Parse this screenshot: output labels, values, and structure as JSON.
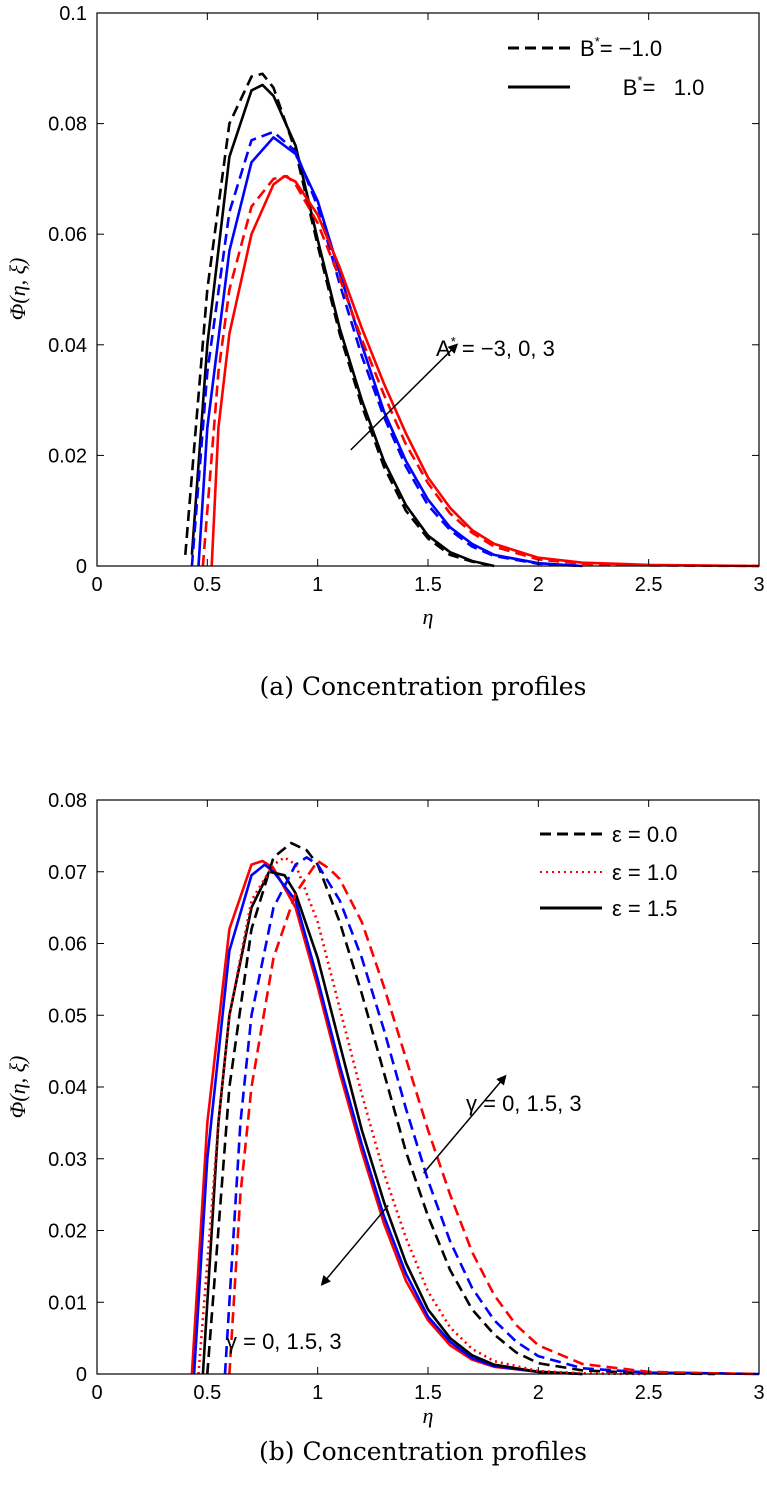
{
  "chart_data": [
    {
      "type": "line",
      "caption": "(a)  Concentration profiles",
      "xlabel": "η",
      "ylabel": "Φ(η, ξ)",
      "xlim": [
        0,
        3
      ],
      "ylim": [
        0,
        0.1
      ],
      "xticks": [
        0,
        0.5,
        1,
        1.5,
        2,
        2.5,
        3
      ],
      "xtick_labels": [
        "0",
        "0.5",
        "1",
        "1.5",
        "2",
        "2.5",
        "3"
      ],
      "yticks": [
        0,
        0.02,
        0.04,
        0.06,
        0.08,
        0.1
      ],
      "ytick_labels": [
        "0",
        "0.02",
        "0.04",
        "0.06",
        "0.08",
        "0.1"
      ],
      "legend": [
        {
          "label": "B* = −1.0",
          "name_text": "B",
          "sup": "*",
          "value_text": "= −1.0",
          "style": "dashed"
        },
        {
          "label": "B* = 1.0",
          "name_text": "B",
          "sup": "*",
          "value_text": "=   1.0",
          "style": "solid"
        }
      ],
      "legend_position": "top-right",
      "annotations": [
        {
          "text": "A* = −3, 0, 3",
          "main": "A",
          "sup": "*",
          "rest": " = −3, 0, 3",
          "arrow_from": [
            1.15,
            0.021
          ],
          "arrow_to": [
            1.63,
            0.04
          ]
        }
      ],
      "series": [
        {
          "name": "A*=-3, B*=-1.0",
          "color": "#000000",
          "dash": true,
          "x": [
            0.4,
            0.5,
            0.6,
            0.7,
            0.75,
            0.8,
            0.9,
            1.0,
            1.1,
            1.2,
            1.3,
            1.4,
            1.5,
            1.6,
            1.7,
            1.8
          ],
          "y": [
            0.002,
            0.05,
            0.08,
            0.0885,
            0.089,
            0.0865,
            0.075,
            0.058,
            0.042,
            0.029,
            0.018,
            0.01,
            0.005,
            0.002,
            0.0008,
            0
          ]
        },
        {
          "name": "A*=-3, B*=1.0",
          "color": "#000000",
          "dash": false,
          "x": [
            0.43,
            0.5,
            0.6,
            0.7,
            0.75,
            0.8,
            0.9,
            1.0,
            1.1,
            1.2,
            1.3,
            1.4,
            1.5,
            1.6,
            1.7,
            1.8
          ],
          "y": [
            0.002,
            0.04,
            0.074,
            0.086,
            0.087,
            0.085,
            0.076,
            0.059,
            0.043,
            0.03,
            0.019,
            0.011,
            0.0055,
            0.0025,
            0.0009,
            0
          ]
        },
        {
          "name": "A*=0, B*=-1.0",
          "color": "#0000ff",
          "dash": true,
          "x": [
            0.43,
            0.5,
            0.6,
            0.7,
            0.8,
            0.9,
            1.0,
            1.1,
            1.2,
            1.3,
            1.4,
            1.5,
            1.6,
            1.7,
            1.8,
            2.0,
            2.2
          ],
          "y": [
            0.0,
            0.035,
            0.064,
            0.077,
            0.0785,
            0.075,
            0.065,
            0.051,
            0.038,
            0.027,
            0.018,
            0.011,
            0.0065,
            0.0035,
            0.0018,
            0.0004,
            0
          ]
        },
        {
          "name": "A*=0, B*=1.0",
          "color": "#0000ff",
          "dash": false,
          "x": [
            0.46,
            0.5,
            0.6,
            0.7,
            0.8,
            0.9,
            1.0,
            1.1,
            1.2,
            1.3,
            1.4,
            1.5,
            1.6,
            1.7,
            1.8,
            2.0,
            2.2
          ],
          "y": [
            0.0,
            0.025,
            0.057,
            0.073,
            0.0775,
            0.0745,
            0.066,
            0.053,
            0.04,
            0.028,
            0.019,
            0.012,
            0.007,
            0.004,
            0.002,
            0.0005,
            0
          ]
        },
        {
          "name": "A*=3, B*=-1.0",
          "color": "#ff0000",
          "dash": true,
          "x": [
            0.48,
            0.55,
            0.6,
            0.7,
            0.8,
            0.86,
            0.9,
            1.0,
            1.1,
            1.2,
            1.3,
            1.4,
            1.5,
            1.6,
            1.7,
            1.8,
            2.0,
            2.2,
            2.5,
            3.0
          ],
          "y": [
            0.0,
            0.035,
            0.05,
            0.065,
            0.07,
            0.0705,
            0.069,
            0.062,
            0.052,
            0.041,
            0.031,
            0.022,
            0.015,
            0.0095,
            0.006,
            0.0035,
            0.0012,
            0.0004,
            0.0001,
            0
          ]
        },
        {
          "name": "A*=3, B*=1.0",
          "color": "#ff0000",
          "dash": false,
          "x": [
            0.52,
            0.55,
            0.6,
            0.7,
            0.8,
            0.85,
            0.9,
            1.0,
            1.1,
            1.2,
            1.3,
            1.4,
            1.5,
            1.6,
            1.7,
            1.8,
            2.0,
            2.2,
            2.5,
            3.0
          ],
          "y": [
            0.0,
            0.025,
            0.042,
            0.06,
            0.069,
            0.0705,
            0.0695,
            0.0635,
            0.054,
            0.043,
            0.033,
            0.024,
            0.016,
            0.0105,
            0.0065,
            0.004,
            0.0015,
            0.0006,
            0.0002,
            0
          ]
        }
      ]
    },
    {
      "type": "line",
      "caption": "(b)  Concentration profiles",
      "xlabel": "η",
      "ylabel": "Φ(η, ξ)",
      "xlim": [
        0,
        3
      ],
      "ylim": [
        0,
        0.08
      ],
      "xticks": [
        0,
        0.5,
        1,
        1.5,
        2,
        2.5,
        3
      ],
      "xtick_labels": [
        "0",
        "0.5",
        "1",
        "1.5",
        "2",
        "2.5",
        "3"
      ],
      "yticks": [
        0,
        0.01,
        0.02,
        0.03,
        0.04,
        0.05,
        0.06,
        0.07,
        0.08
      ],
      "ytick_labels": [
        "0",
        "0.01",
        "0.02",
        "0.03",
        "0.04",
        "0.05",
        "0.06",
        "0.07",
        "0.08"
      ],
      "legend": [
        {
          "label": "ε = 0.0",
          "style": "dashed"
        },
        {
          "label": "ε = 1.0",
          "style": "dotted"
        },
        {
          "label": "ε = 1.5",
          "style": "solid"
        }
      ],
      "legend_position": "top-right",
      "annotations": [
        {
          "text": "γ = 0, 1.5, 3",
          "arrow_from": [
            1.48,
            0.028
          ],
          "arrow_to": [
            1.85,
            0.0415
          ]
        },
        {
          "text": "γ = 0, 1.5, 3",
          "arrow_from": [
            1.32,
            0.0235
          ],
          "arrow_to": [
            1.02,
            0.0125
          ]
        }
      ],
      "series": [
        {
          "name": "ε=1.5, γ=0",
          "color": "#ff0000",
          "dash": "solid",
          "x": [
            0.43,
            0.5,
            0.6,
            0.7,
            0.75,
            0.8,
            0.9,
            1.0,
            1.1,
            1.2,
            1.3,
            1.4,
            1.5,
            1.6,
            1.7,
            1.8,
            2.0,
            2.2
          ],
          "y": [
            0.0,
            0.035,
            0.062,
            0.071,
            0.0715,
            0.0705,
            0.065,
            0.054,
            0.042,
            0.031,
            0.021,
            0.013,
            0.0075,
            0.004,
            0.002,
            0.001,
            0.0003,
            0
          ]
        },
        {
          "name": "ε=1.5, γ=1.5",
          "color": "#0000ff",
          "dash": "solid",
          "x": [
            0.44,
            0.5,
            0.6,
            0.7,
            0.76,
            0.8,
            0.9,
            1.0,
            1.1,
            1.2,
            1.3,
            1.4,
            1.5,
            1.6,
            1.7,
            1.8,
            2.0,
            2.2
          ],
          "y": [
            0.0,
            0.03,
            0.059,
            0.0695,
            0.071,
            0.07,
            0.066,
            0.055,
            0.043,
            0.032,
            0.022,
            0.014,
            0.008,
            0.0045,
            0.0022,
            0.0011,
            0.0003,
            0
          ]
        },
        {
          "name": "ε=1.5, γ=3",
          "color": "#000000",
          "dash": "solid",
          "x": [
            0.48,
            0.55,
            0.6,
            0.7,
            0.78,
            0.85,
            0.9,
            1.0,
            1.1,
            1.2,
            1.3,
            1.4,
            1.5,
            1.6,
            1.7,
            1.8,
            2.0,
            2.2
          ],
          "y": [
            0.0,
            0.035,
            0.05,
            0.065,
            0.07,
            0.0695,
            0.067,
            0.058,
            0.046,
            0.034,
            0.024,
            0.0155,
            0.009,
            0.005,
            0.0026,
            0.0013,
            0.0003,
            0
          ]
        },
        {
          "name": "ε=0.0, γ=0",
          "color": "#000000",
          "dash": "dashed",
          "x": [
            0.5,
            0.6,
            0.7,
            0.8,
            0.88,
            0.95,
            1.0,
            1.1,
            1.2,
            1.3,
            1.4,
            1.5,
            1.6,
            1.7,
            1.8,
            1.9,
            2.0,
            2.2,
            2.5,
            2.8
          ],
          "y": [
            0.0,
            0.04,
            0.062,
            0.072,
            0.074,
            0.073,
            0.071,
            0.063,
            0.053,
            0.042,
            0.031,
            0.022,
            0.0145,
            0.009,
            0.0055,
            0.003,
            0.0015,
            0.0005,
            0.0001,
            0
          ]
        },
        {
          "name": "ε=1.0, γ=0",
          "color": "#ff0000",
          "dash": "dotted",
          "x": [
            0.46,
            0.55,
            0.6,
            0.7,
            0.8,
            0.85,
            0.9,
            1.0,
            1.1,
            1.2,
            1.3,
            1.4,
            1.5,
            1.6,
            1.7,
            1.8,
            2.0,
            2.2,
            2.5
          ],
          "y": [
            0.0,
            0.035,
            0.05,
            0.066,
            0.071,
            0.072,
            0.071,
            0.063,
            0.051,
            0.039,
            0.028,
            0.019,
            0.0115,
            0.0065,
            0.0035,
            0.0018,
            0.0004,
            0.0001,
            0
          ]
        },
        {
          "name": "ε=0.0, γ=1.5",
          "color": "#0000ff",
          "dash": "dashed",
          "x": [
            0.58,
            0.65,
            0.7,
            0.8,
            0.9,
            0.95,
            1.0,
            1.1,
            1.2,
            1.3,
            1.4,
            1.5,
            1.6,
            1.7,
            1.8,
            1.9,
            2.0,
            2.2,
            2.5,
            2.8,
            3.0
          ],
          "y": [
            0.0,
            0.035,
            0.05,
            0.065,
            0.071,
            0.072,
            0.071,
            0.066,
            0.058,
            0.048,
            0.037,
            0.027,
            0.0185,
            0.012,
            0.0075,
            0.0045,
            0.0025,
            0.0008,
            0.0002,
            0.0001,
            0
          ]
        },
        {
          "name": "ε=0.0, γ=3",
          "color": "#ff0000",
          "dash": "dashed",
          "x": [
            0.6,
            0.65,
            0.7,
            0.8,
            0.9,
            1.0,
            1.05,
            1.1,
            1.2,
            1.3,
            1.4,
            1.5,
            1.6,
            1.7,
            1.8,
            1.9,
            2.0,
            2.2,
            2.5,
            2.8,
            3.0
          ],
          "y": [
            0.0,
            0.025,
            0.04,
            0.058,
            0.067,
            0.0715,
            0.0705,
            0.069,
            0.063,
            0.054,
            0.044,
            0.034,
            0.025,
            0.017,
            0.011,
            0.0068,
            0.004,
            0.0014,
            0.0003,
            0.0001,
            0
          ]
        }
      ]
    }
  ]
}
